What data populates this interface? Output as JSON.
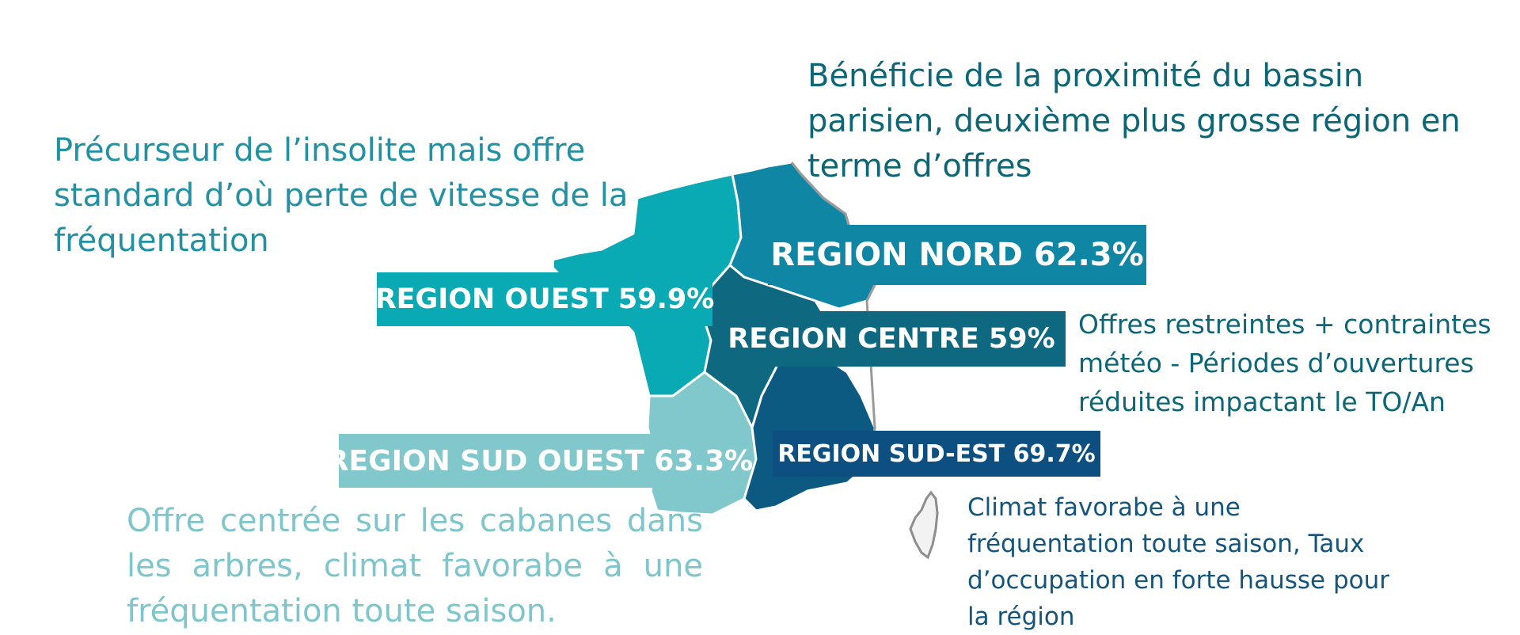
{
  "notes": {
    "nord": "Bénéficie de la proximité du bassin parisien, deuxième plus grosse région en terme d’offres",
    "ouest": "Précurseur de l’insolite mais offre standard d’où perte de vitesse de la fréquentation",
    "centre": "Offres restreintes + contraintes météo - Périodes d’ouvertures réduites impactant le TO/An",
    "sud_ouest": "Offre centrée sur les cabanes dans les arbres, climat favorabe à une fréquentation toute saison.",
    "sud_est": "Climat favorabe à une fréquentation toute saison, Taux d’occupation en forte hausse pour la région"
  },
  "regions": {
    "nord": {
      "label": "REGION NORD 62.3%",
      "value": 62.3,
      "color": "#0f86a3"
    },
    "ouest": {
      "label": "REGION OUEST 59.9%",
      "value": 59.9,
      "color": "#0aaab5"
    },
    "centre": {
      "label": "REGION CENTRE  59%",
      "value": 59,
      "color": "#0d6880"
    },
    "sud_ouest": {
      "label": "REGION SUD OUEST 63.3%",
      "value": 63.3,
      "color": "#80c8cc"
    },
    "sud_est": {
      "label": "REGION SUD-EST 69.7%",
      "value": 69.7,
      "color": "#0c4f80"
    }
  },
  "colors": {
    "note_dark": "#0c6676",
    "note_teal": "#2191a3",
    "note_light": "#7ec6cc",
    "note_navy": "#16557b",
    "map_outline": "#9a9a9a"
  }
}
